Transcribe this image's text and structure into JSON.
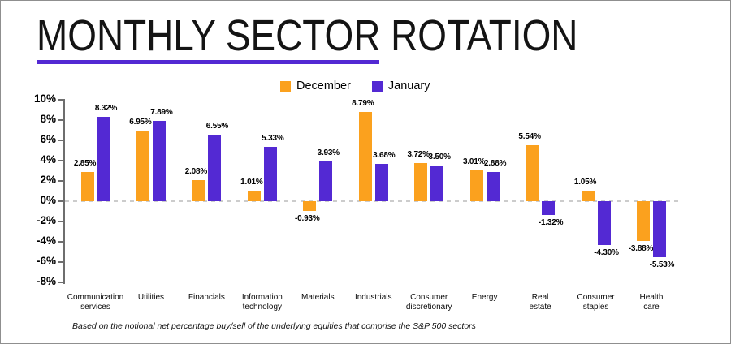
{
  "header": {
    "title": "MONTHLY SECTOR ROTATION"
  },
  "colors": {
    "accent_orange": "#FBA11E",
    "accent_purple": "#5329D3",
    "axis": "#6e6e6e",
    "zero_line": "#cccccc"
  },
  "legend": {
    "items": [
      {
        "label": "December",
        "color": "#FBA11E"
      },
      {
        "label": "January",
        "color": "#5329D3"
      }
    ]
  },
  "chart_data": {
    "type": "bar",
    "title": "MONTHLY SECTOR ROTATION",
    "xlabel": "",
    "ylabel": "",
    "ylim": [
      -8,
      10
    ],
    "grid": "dashed zero line only",
    "legend_position": "top-center",
    "categories": [
      [
        "Communication",
        "services"
      ],
      [
        "Utilities"
      ],
      [
        "Financials"
      ],
      [
        "Information",
        "technology"
      ],
      [
        "Materials"
      ],
      [
        "Industrials"
      ],
      [
        "Consumer",
        "discretionary"
      ],
      [
        "Energy"
      ],
      [
        "Real",
        "estate"
      ],
      [
        "Consumer",
        "staples"
      ],
      [
        "Health",
        "care"
      ]
    ],
    "ytick_values": [
      10,
      8,
      6,
      4,
      2,
      0,
      -2,
      -4,
      -6,
      -8
    ],
    "ytick_labels": [
      "10%",
      "8%",
      "6%",
      "4%",
      "2%",
      "0%",
      "-2%",
      "-4%",
      "-6%",
      "-8%"
    ],
    "series": [
      {
        "name": "December",
        "color": "#FBA11E",
        "values": [
          2.85,
          6.95,
          2.08,
          1.01,
          -0.93,
          8.79,
          3.72,
          3.01,
          5.54,
          1.05,
          -3.88
        ],
        "labels": [
          "2.85%",
          "6.95%",
          "2.08%",
          "1.01%",
          "-0.93%",
          "8.79%",
          "3.72%",
          "3.01%",
          "5.54%",
          "1.05%",
          "-3.88%"
        ]
      },
      {
        "name": "January",
        "color": "#5329D3",
        "values": [
          8.32,
          7.89,
          6.55,
          5.33,
          3.93,
          3.68,
          3.5,
          2.88,
          -1.32,
          -4.3,
          -5.53
        ],
        "labels": [
          "8.32%",
          "7.89%",
          "6.55%",
          "5.33%",
          "3.93%",
          "3.68%",
          "3.50%",
          "2.88%",
          "-1.32%",
          "-4.30%",
          "-5.53%"
        ]
      }
    ]
  },
  "footnote": "Based on the notional net percentage buy/sell of the underlying equities that comprise the S&P 500 sectors"
}
